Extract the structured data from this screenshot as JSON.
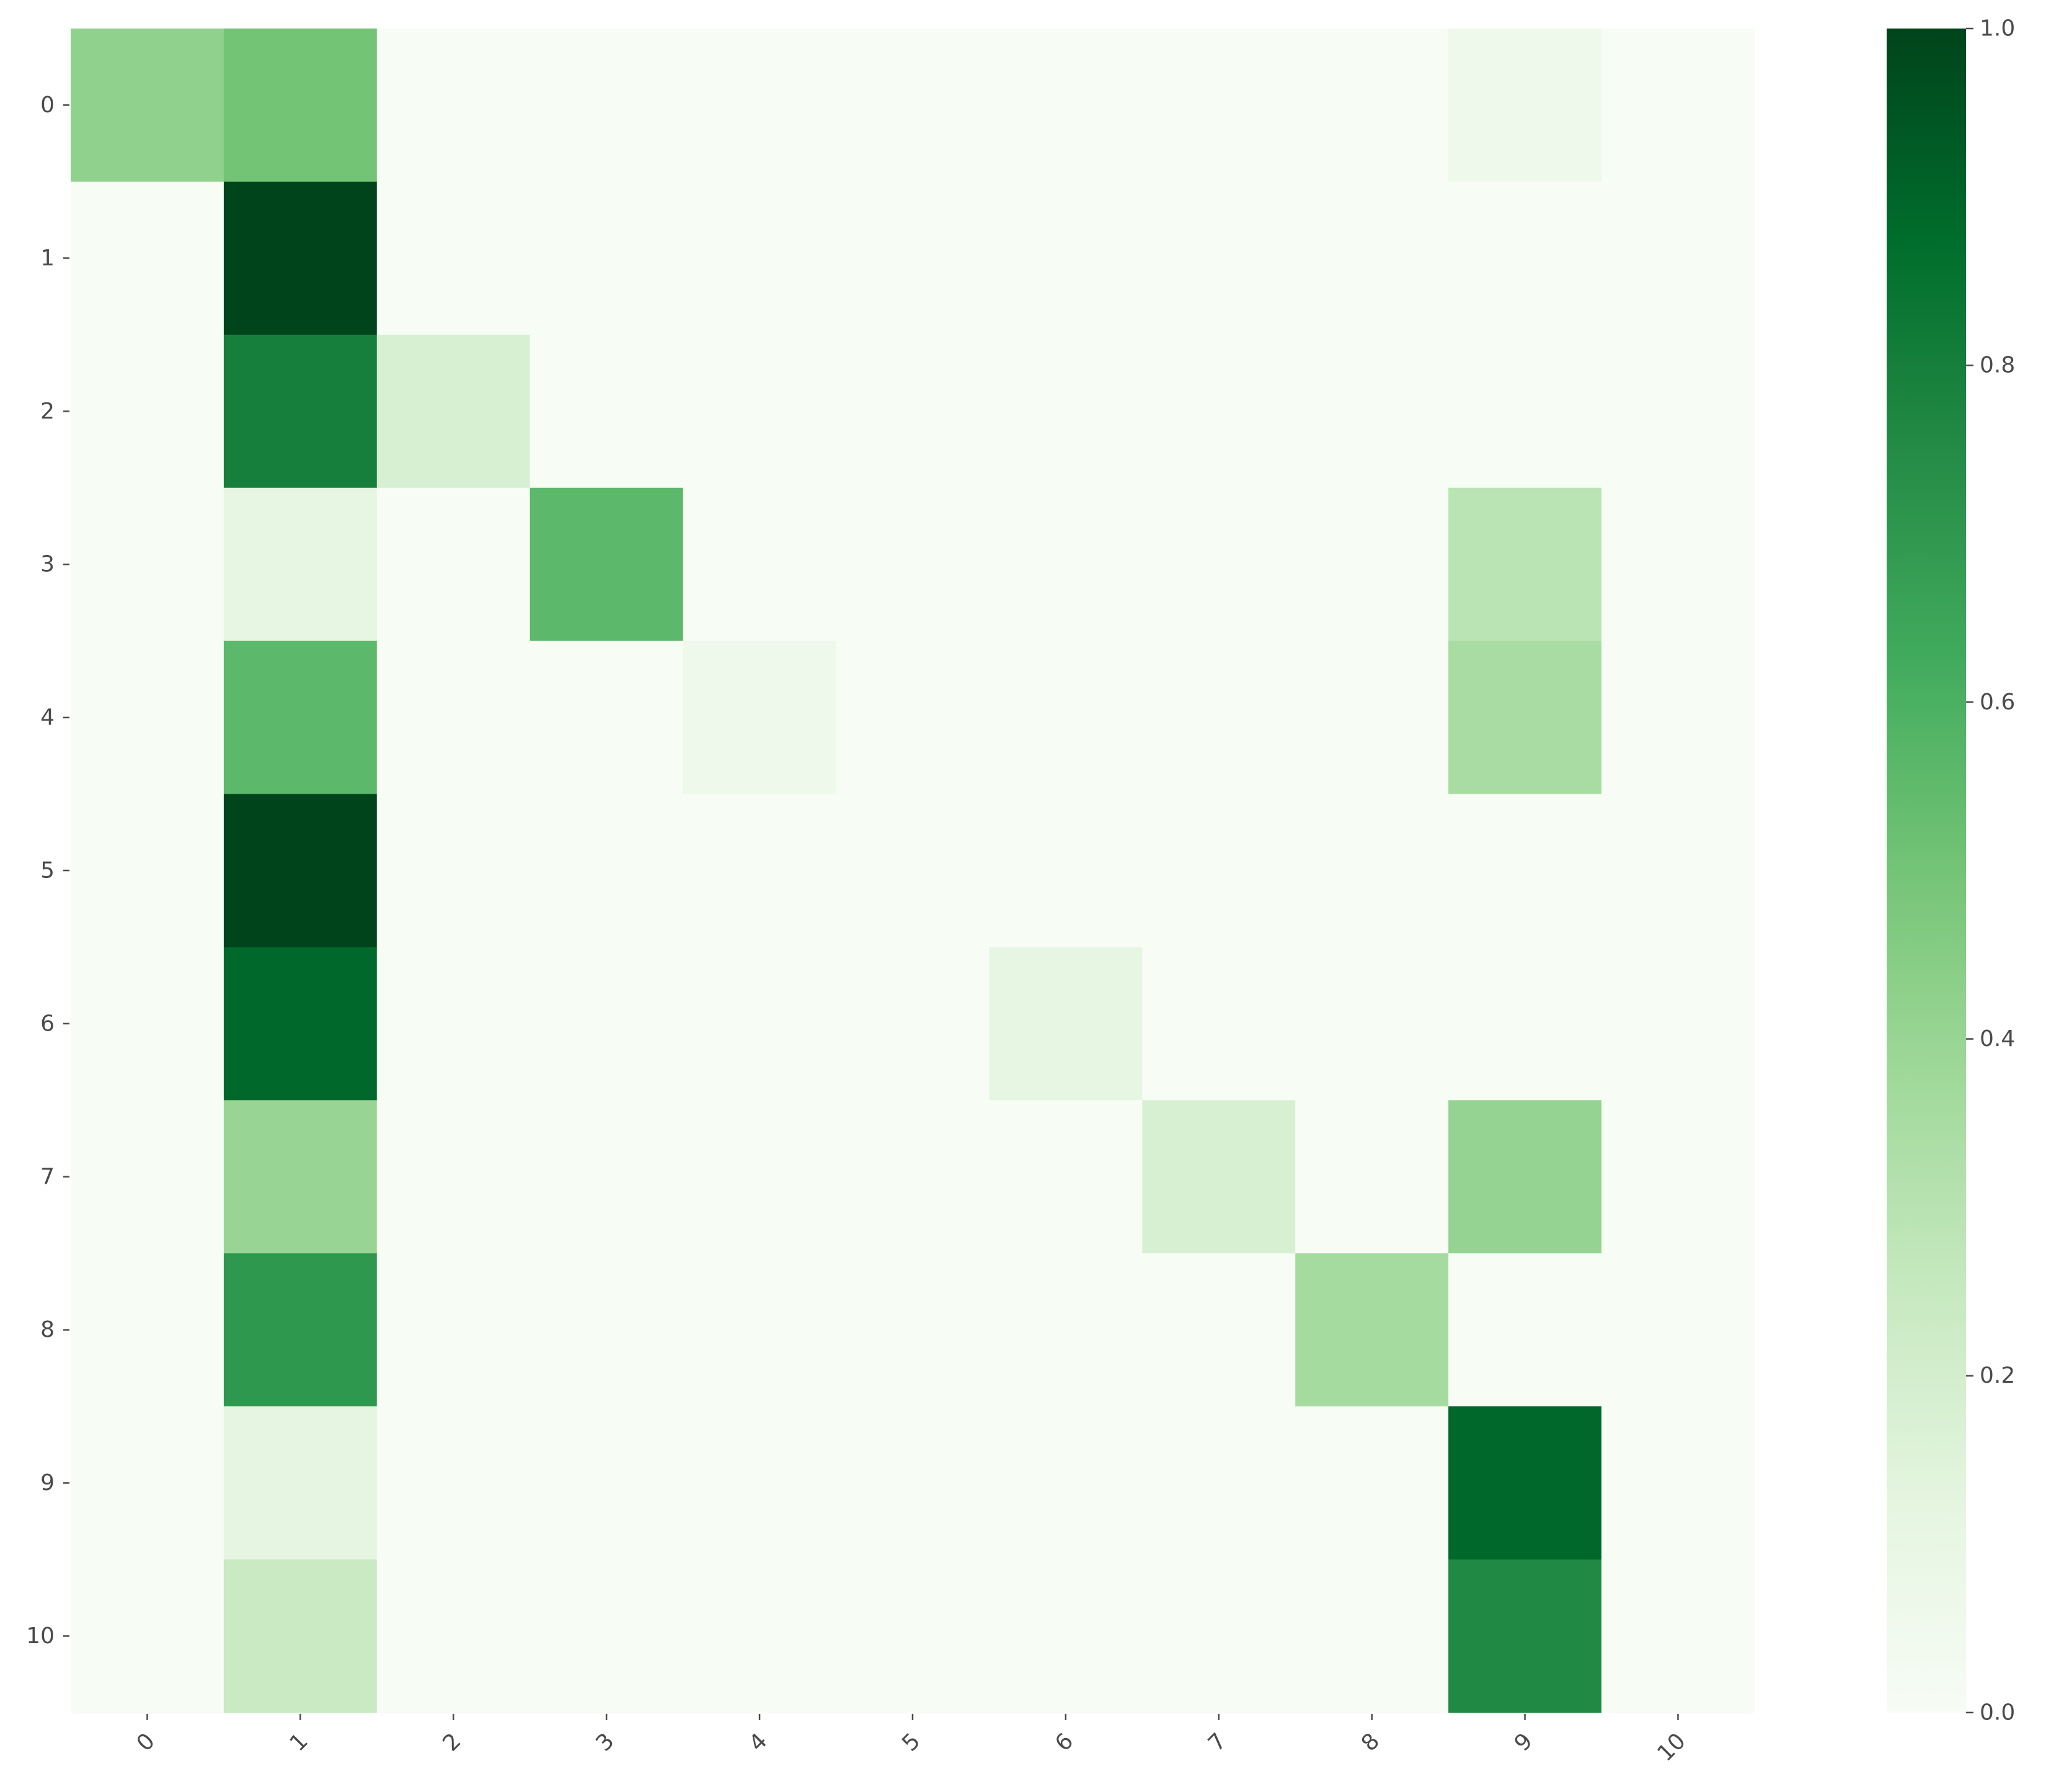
{
  "chart_data": {
    "type": "heatmap",
    "title": "",
    "xlabel": "",
    "ylabel": "",
    "x_categories": [
      "0",
      "1",
      "2",
      "3",
      "4",
      "5",
      "6",
      "7",
      "8",
      "9",
      "10"
    ],
    "y_categories": [
      "0",
      "1",
      "2",
      "3",
      "4",
      "5",
      "6",
      "7",
      "8",
      "9",
      "10"
    ],
    "values": [
      [
        0.42,
        0.5,
        0.0,
        0.0,
        0.0,
        0.0,
        0.0,
        0.0,
        0.0,
        0.06,
        0.0
      ],
      [
        0.0,
        1.0,
        0.0,
        0.0,
        0.0,
        0.0,
        0.0,
        0.0,
        0.0,
        0.0,
        0.0
      ],
      [
        0.0,
        0.8,
        0.18,
        0.0,
        0.0,
        0.0,
        0.0,
        0.0,
        0.0,
        0.0,
        0.0
      ],
      [
        0.0,
        0.11,
        0.0,
        0.56,
        0.0,
        0.0,
        0.0,
        0.0,
        0.0,
        0.29,
        0.0
      ],
      [
        0.0,
        0.56,
        0.0,
        0.0,
        0.06,
        0.0,
        0.0,
        0.0,
        0.0,
        0.35,
        0.0
      ],
      [
        0.0,
        1.0,
        0.0,
        0.0,
        0.0,
        0.0,
        0.0,
        0.0,
        0.0,
        0.0,
        0.0
      ],
      [
        0.0,
        0.89,
        0.0,
        0.0,
        0.0,
        0.0,
        0.11,
        0.0,
        0.0,
        0.0,
        0.0
      ],
      [
        0.0,
        0.4,
        0.0,
        0.0,
        0.0,
        0.0,
        0.0,
        0.18,
        0.0,
        0.41,
        0.0
      ],
      [
        0.0,
        0.7,
        0.0,
        0.0,
        0.0,
        0.0,
        0.0,
        0.0,
        0.36,
        0.0,
        0.0
      ],
      [
        0.0,
        0.12,
        0.0,
        0.0,
        0.0,
        0.0,
        0.0,
        0.0,
        0.0,
        0.89,
        0.0
      ],
      [
        0.0,
        0.24,
        0.0,
        0.0,
        0.0,
        0.0,
        0.0,
        0.0,
        0.0,
        0.76,
        0.0
      ]
    ],
    "colormap": "Greens",
    "vmin": 0.0,
    "vmax": 1.0,
    "colorbar": {
      "ticks": [
        0.0,
        0.2,
        0.4,
        0.6,
        0.8,
        1.0
      ],
      "tick_labels": [
        "0.0",
        "0.2",
        "0.4",
        "0.6",
        "0.8",
        "1.0"
      ]
    },
    "x_tick_rotation": "45°",
    "grid": false
  }
}
